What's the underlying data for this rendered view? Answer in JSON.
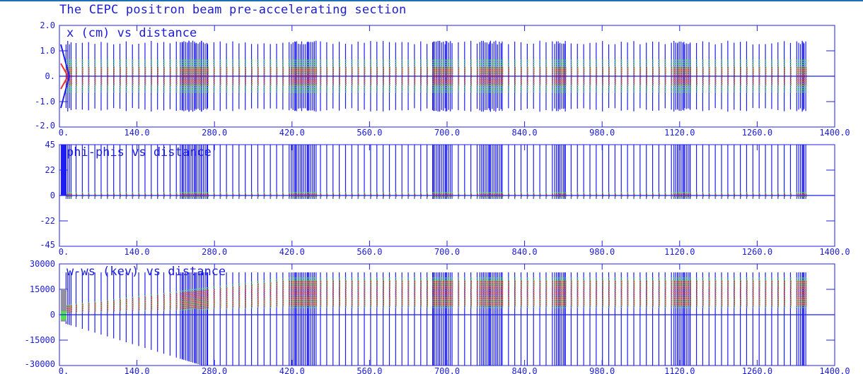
{
  "page_title": "The CEPC positron beam pre-accelerating section",
  "colors": {
    "frame": "#2020e0",
    "label": "#1c1cd8",
    "blue": "#1e1ef0",
    "red": "#e83030",
    "green": "#50e050",
    "gray": "#9090a0",
    "topbar": "#1f6fb5"
  },
  "chart_data": [
    {
      "type": "scatter",
      "title": "x (cm) vs distance",
      "xlim": [
        0,
        1400
      ],
      "ylim": [
        -2.0,
        2.0
      ],
      "x_ticks": [
        "0.",
        "140.0",
        "280.0",
        "420.0",
        "560.0",
        "700.0",
        "840.0",
        "980.0",
        "1120.0",
        "1260.0",
        "1400.0"
      ],
      "y_ticks": [
        "2.0",
        "1.0",
        "0.",
        "-1.0",
        "-2.0"
      ],
      "envelope": {
        "blue": 1.25,
        "green": 0.65,
        "red": 0.35
      },
      "grid": false
    },
    {
      "type": "scatter",
      "title": "phi-phis vs distance",
      "xlim": [
        0,
        1400
      ],
      "ylim": [
        -45,
        45
      ],
      "x_ticks": [
        "0.",
        "140.0",
        "280.0",
        "420.0",
        "560.0",
        "700.0",
        "840.0",
        "980.0",
        "1120.0",
        "1260.0",
        "1400.0"
      ],
      "y_ticks": [
        "45",
        "22",
        "0",
        "-22",
        "-45"
      ],
      "envelope": {
        "blue_top": 45,
        "blue_bottom": -3,
        "green": 3,
        "red": 1.5
      },
      "grid": false
    },
    {
      "type": "scatter",
      "title": "w-ws (kev) vs distance",
      "xlim": [
        0,
        1400
      ],
      "ylim": [
        -30000,
        30000
      ],
      "x_ticks": [
        "0.",
        "140.0",
        "280.0",
        "420.0",
        "560.0",
        "700.0",
        "840.0",
        "980.0",
        "1120.0",
        "1260.0",
        "1400.0"
      ],
      "y_ticks": [
        "30000",
        "15000",
        "0",
        "-15000",
        "-30000"
      ],
      "envelope": {
        "blue_top": 25000,
        "blue_bottom_start": -5000,
        "blue_bottom_min": -30000,
        "red_max": 20000,
        "green_max": 22000
      },
      "grid": false
    }
  ]
}
